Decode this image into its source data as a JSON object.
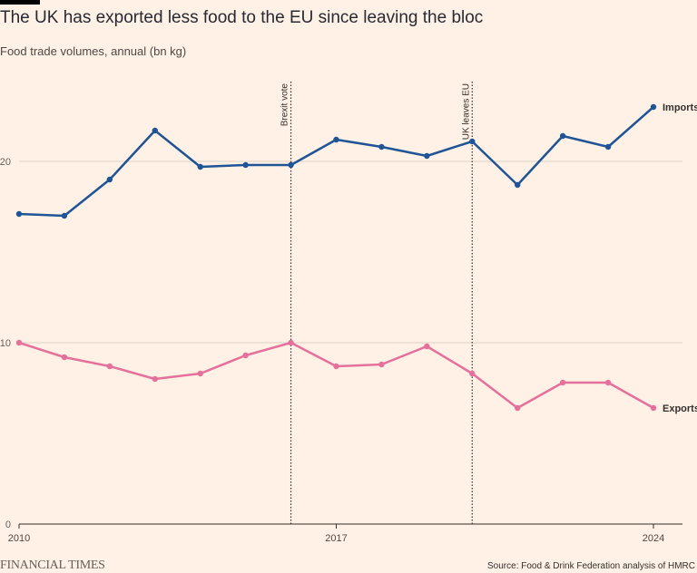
{
  "header": {
    "title": "The UK has exported less food to the EU since leaving the bloc",
    "subtitle": "Food trade volumes, annual (bn kg)"
  },
  "footer": {
    "logo": "FINANCIAL TIMES",
    "source": "Source: Food & Drink Federation analysis of HMRC"
  },
  "colors": {
    "background": "#fff1e5",
    "imports": "#1f5497",
    "exports": "#e5709b",
    "grid": "#dcd2c9",
    "text": "#33302e"
  },
  "chart_data": {
    "type": "line",
    "title": "The UK has exported less food to the EU since leaving the bloc",
    "ylabel": "Food trade volumes, annual (bn kg)",
    "xlabel": "",
    "x": [
      2010,
      2011,
      2012,
      2013,
      2014,
      2015,
      2016,
      2017,
      2018,
      2019,
      2020,
      2021,
      2022,
      2023,
      2024
    ],
    "xlim": [
      2010,
      2024
    ],
    "ylim": [
      0,
      25
    ],
    "xticks": [
      2010,
      2017,
      2024
    ],
    "yticks": [
      0,
      10,
      20
    ],
    "series": [
      {
        "name": "Imports",
        "color": "#1f5497",
        "values": [
          17.1,
          17.0,
          19.0,
          21.7,
          19.7,
          19.8,
          19.8,
          21.2,
          20.8,
          20.3,
          21.1,
          18.7,
          21.4,
          20.8,
          23.0
        ]
      },
      {
        "name": "Exports",
        "color": "#e5709b",
        "values": [
          10.0,
          9.2,
          8.7,
          8.0,
          8.3,
          9.3,
          10.0,
          8.7,
          8.8,
          9.8,
          8.3,
          6.4,
          7.8,
          7.8,
          6.4
        ]
      }
    ],
    "annotations": [
      {
        "x": 2016,
        "label": "Brexit vote"
      },
      {
        "x": 2020,
        "label": "UK leaves EU"
      }
    ]
  }
}
